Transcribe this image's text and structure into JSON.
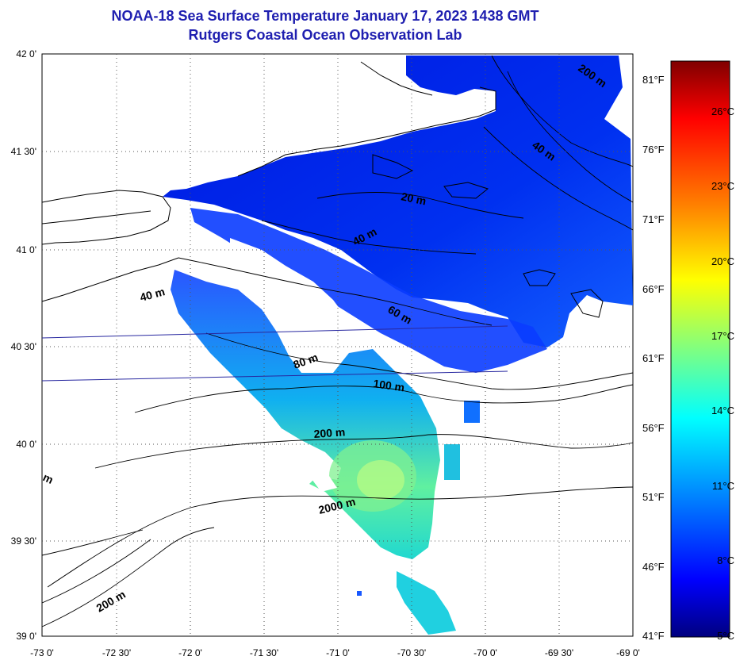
{
  "header": {
    "title": "NOAA-18 Sea Surface Temperature January 17, 2023 1438 GMT",
    "subtitle": "Rutgers Coastal Ocean Observation Lab"
  },
  "map": {
    "lat_labels": [
      "42 0'",
      "41 30'",
      "41 0'",
      "40 30'",
      "40 0'",
      "39 30'",
      "39 0'"
    ],
    "lon_labels": [
      "-73 0'",
      "-72 30'",
      "-72 0'",
      "-71 30'",
      "-71 0'",
      "-70 30'",
      "-70 0'",
      "-69 30'",
      "-69 0'"
    ],
    "depth_labels": [
      "200 m",
      "40 m",
      "20 m",
      "40 m",
      "40 m",
      "60 m",
      "80 m",
      "100 m",
      "200 m",
      "2000 m",
      "m",
      "200 m"
    ],
    "colors": {
      "land_outline": "#000000",
      "track_line": "#2828a0",
      "grid": "#000000"
    }
  },
  "colorbar": {
    "fahrenheit_labels": [
      "81°F",
      "76°F",
      "71°F",
      "66°F",
      "61°F",
      "56°F",
      "51°F",
      "46°F",
      "41°F"
    ],
    "celsius_labels": [
      "26°C",
      "23°C",
      "20°C",
      "17°C",
      "14°C",
      "11°C",
      "8°C",
      "5°C"
    ],
    "gradient": [
      "#7f0000",
      "#ff0000",
      "#ff8000",
      "#ffff00",
      "#80ff80",
      "#00ffff",
      "#0080ff",
      "#0000ff",
      "#00007f"
    ]
  }
}
